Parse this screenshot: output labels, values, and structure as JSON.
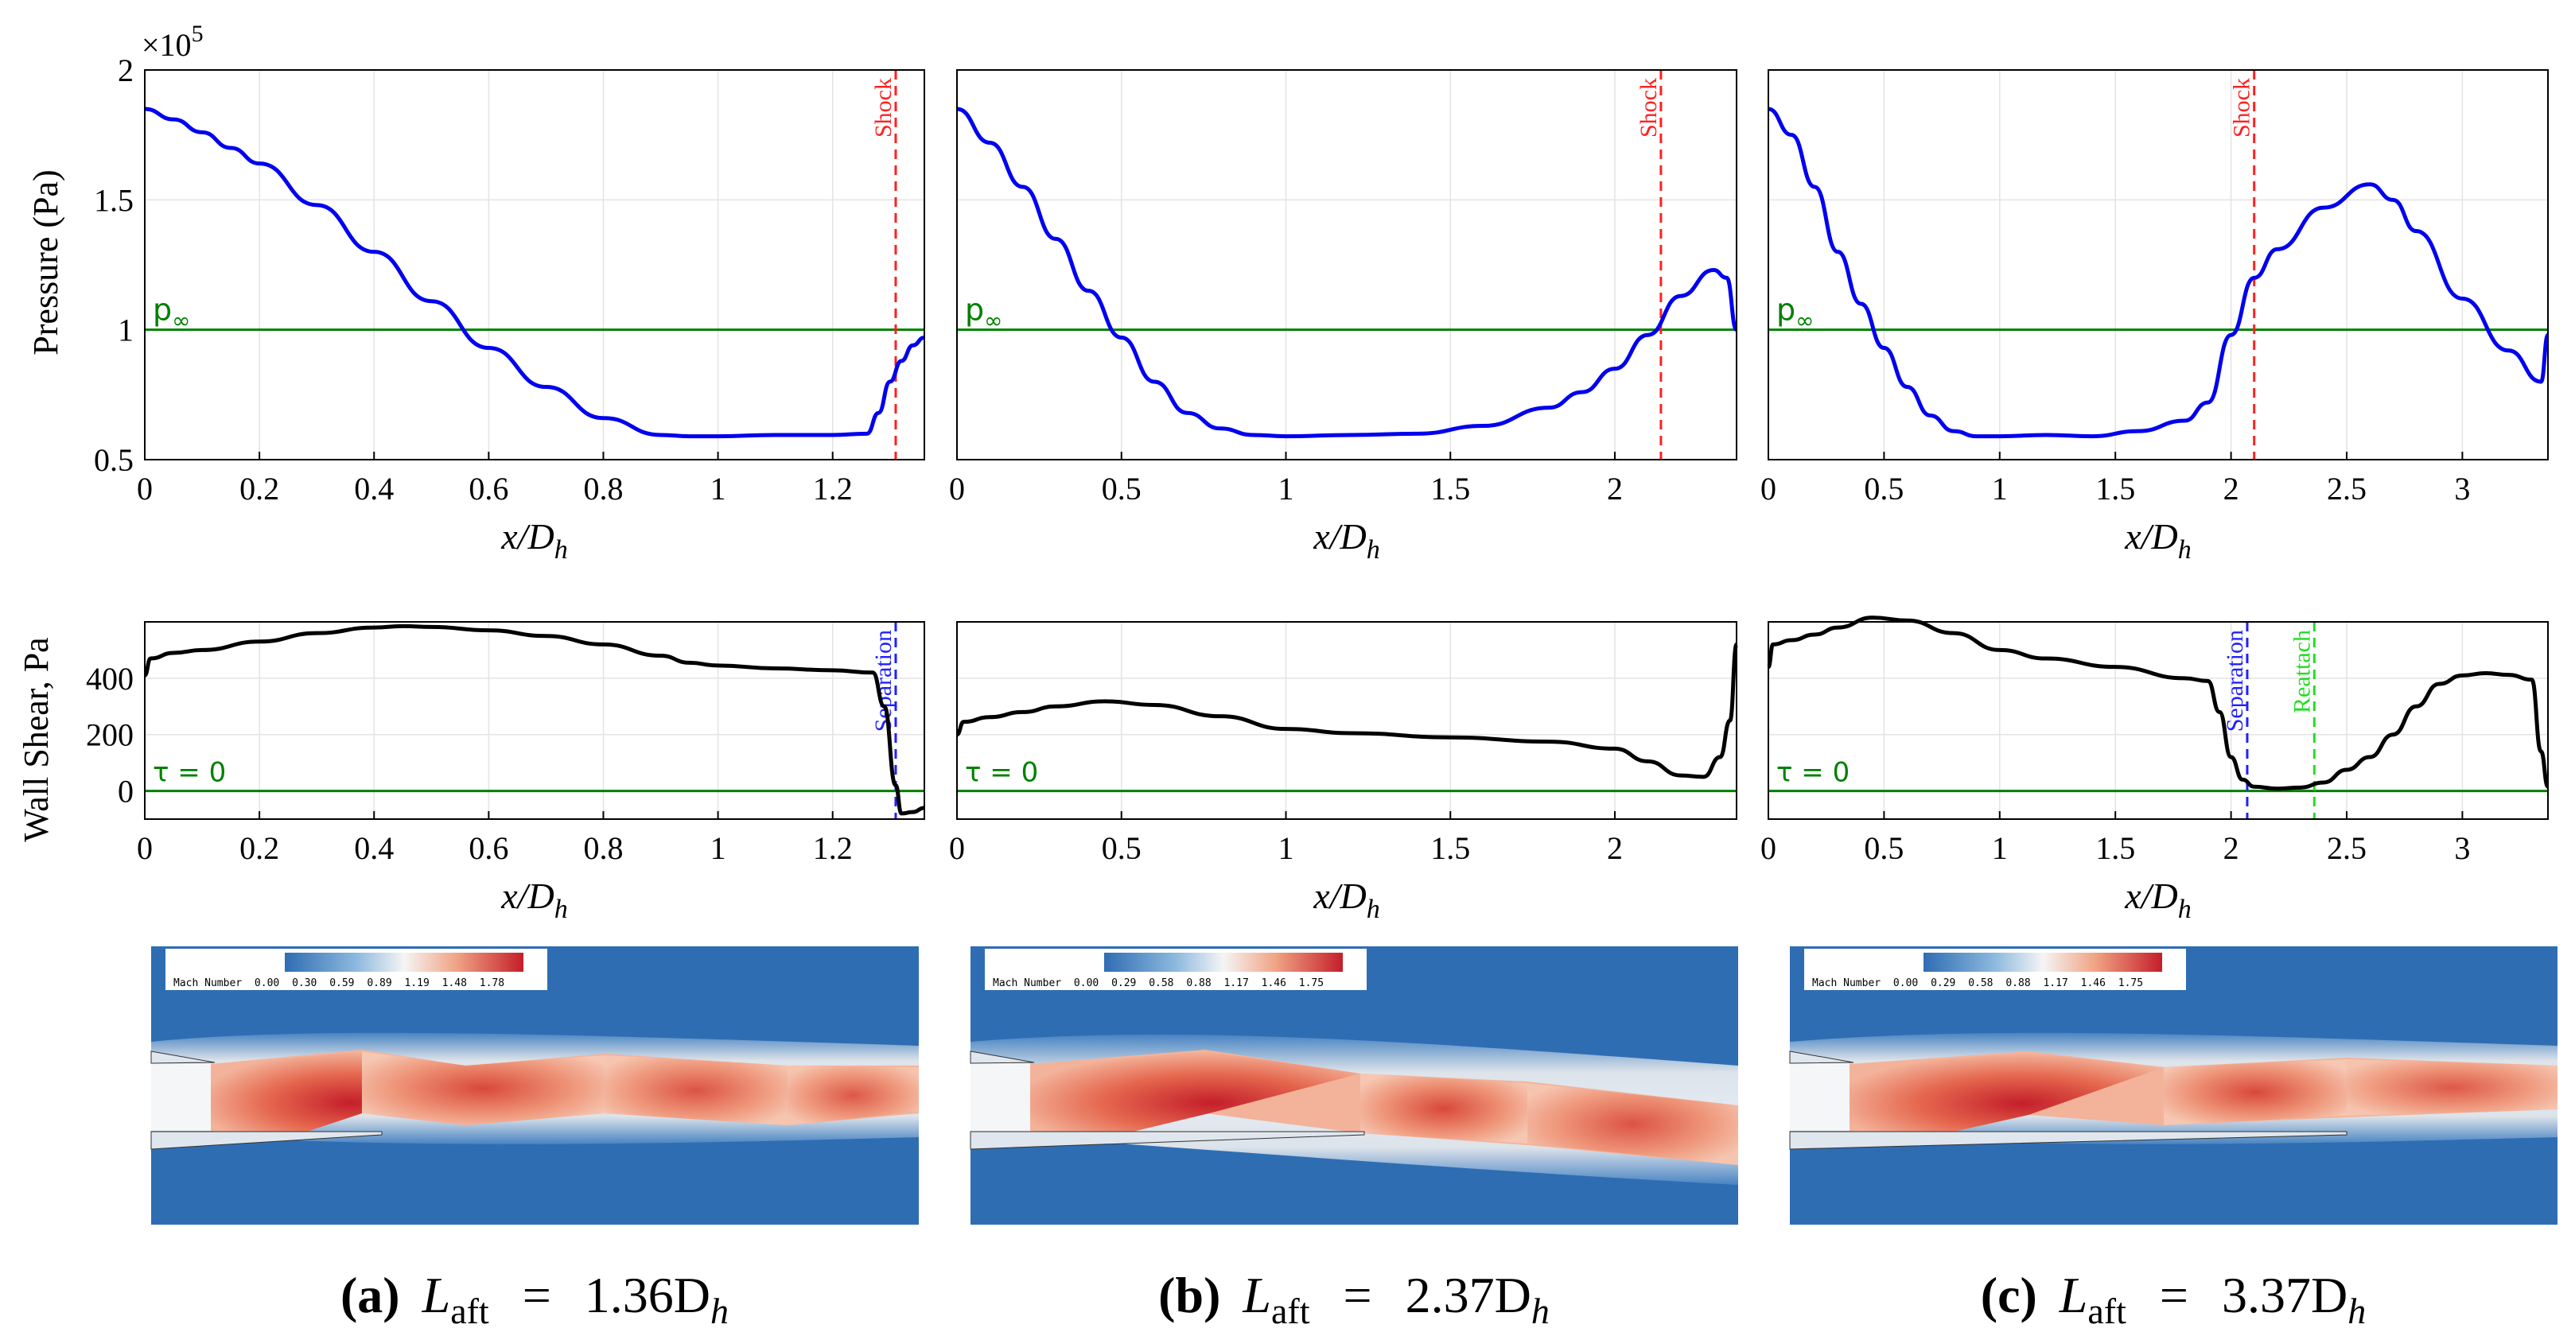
{
  "figure": {
    "pressure_ylabel": "Pressure (Pa)",
    "pressure_scale": "×10",
    "pressure_scale_exp": "5",
    "shear_ylabel": "Wall Shear, Pa",
    "xlabel": "x/D",
    "xlabel_sub": "h",
    "pinf_label": "p",
    "pinf_sub": "∞",
    "tau_label": "τ = 0",
    "shock_label": "Shock",
    "separation_label": "Separation",
    "reattach_label": "Reattach",
    "colorbar_title": "Mach Number"
  },
  "colors": {
    "pressure_line": "#0000ee",
    "shear_line": "#000000",
    "reference_line": "#008000",
    "shock_line": "#ff2020",
    "separation_line": "#2020ff",
    "reattach_line": "#22dd22",
    "contour_bg": "#2f6db3",
    "contour_hot": "#c41e2a"
  },
  "captions": [
    {
      "letter": "(a)",
      "var": "L",
      "sub": "aft",
      "eq": "=",
      "value": "1.36D",
      "value_sub": "h"
    },
    {
      "letter": "(b)",
      "var": "L",
      "sub": "aft",
      "eq": "=",
      "value": "2.37D",
      "value_sub": "h"
    },
    {
      "letter": "(c)",
      "var": "L",
      "sub": "aft",
      "eq": "=",
      "value": "3.37D",
      "value_sub": "h"
    }
  ],
  "colorbars": [
    {
      "ticks": [
        "0.00",
        "0.30",
        "0.59",
        "0.89",
        "1.19",
        "1.48",
        "1.78"
      ]
    },
    {
      "ticks": [
        "0.00",
        "0.29",
        "0.58",
        "0.88",
        "1.17",
        "1.46",
        "1.75"
      ]
    },
    {
      "ticks": [
        "0.00",
        "0.29",
        "0.58",
        "0.88",
        "1.17",
        "1.46",
        "1.75"
      ]
    }
  ],
  "chart_data": [
    {
      "type": "line",
      "id": "pressure-a",
      "ylabel": "Pressure (Pa)",
      "xlabel": "x/D_h",
      "xlim": [
        0,
        1.36
      ],
      "ylim": [
        0.5,
        2.0
      ],
      "yscale_note": "×10^5",
      "xticks": [
        0,
        0.2,
        0.4,
        0.6,
        0.8,
        1,
        1.2
      ],
      "xtick_labels": [
        "0",
        "0.2",
        "0.4",
        "0.6",
        "0.8",
        "1",
        "1.2"
      ],
      "yticks": [
        0.5,
        1,
        1.5,
        2
      ],
      "ytick_labels": [
        "0.5",
        "1",
        "1.5",
        "2"
      ],
      "reference": {
        "y": 1.0,
        "label": "p∞"
      },
      "markers": [
        {
          "x": 1.31,
          "label": "Shock",
          "kind": "shock"
        }
      ],
      "series": [
        {
          "name": "pressure",
          "x": [
            0,
            0.05,
            0.1,
            0.15,
            0.2,
            0.3,
            0.4,
            0.5,
            0.6,
            0.7,
            0.8,
            0.9,
            0.95,
            1.0,
            1.1,
            1.2,
            1.26,
            1.28,
            1.3,
            1.32,
            1.34,
            1.36
          ],
          "y": [
            1.85,
            1.81,
            1.76,
            1.7,
            1.64,
            1.48,
            1.3,
            1.11,
            0.93,
            0.78,
            0.66,
            0.595,
            0.59,
            0.59,
            0.595,
            0.595,
            0.6,
            0.68,
            0.8,
            0.88,
            0.94,
            0.97
          ]
        }
      ]
    },
    {
      "type": "line",
      "id": "pressure-b",
      "xlabel": "x/D_h",
      "xlim": [
        0,
        2.37
      ],
      "ylim": [
        0.5,
        2.0
      ],
      "xticks": [
        0,
        0.5,
        1,
        1.5,
        2
      ],
      "xtick_labels": [
        "0",
        "0.5",
        "1",
        "1.5",
        "2"
      ],
      "yticks": [
        0.5,
        1,
        1.5,
        2
      ],
      "reference": {
        "y": 1.0,
        "label": "p∞"
      },
      "markers": [
        {
          "x": 2.14,
          "label": "Shock",
          "kind": "shock"
        }
      ],
      "series": [
        {
          "name": "pressure",
          "x": [
            0,
            0.1,
            0.2,
            0.3,
            0.4,
            0.5,
            0.6,
            0.7,
            0.8,
            0.9,
            1.0,
            1.2,
            1.4,
            1.6,
            1.8,
            1.9,
            2.0,
            2.1,
            2.2,
            2.3,
            2.34,
            2.37
          ],
          "y": [
            1.85,
            1.72,
            1.55,
            1.35,
            1.15,
            0.97,
            0.8,
            0.68,
            0.62,
            0.595,
            0.59,
            0.595,
            0.6,
            0.63,
            0.7,
            0.76,
            0.85,
            0.98,
            1.13,
            1.23,
            1.2,
            1.0
          ]
        }
      ]
    },
    {
      "type": "line",
      "id": "pressure-c",
      "xlabel": "x/D_h",
      "xlim": [
        0,
        3.37
      ],
      "ylim": [
        0.5,
        2.0
      ],
      "xticks": [
        0,
        0.5,
        1,
        1.5,
        2,
        2.5,
        3
      ],
      "xtick_labels": [
        "0",
        "0.5",
        "1",
        "1.5",
        "2",
        "2.5",
        "3"
      ],
      "yticks": [
        0.5,
        1,
        1.5,
        2
      ],
      "reference": {
        "y": 1.0,
        "label": "p∞"
      },
      "markers": [
        {
          "x": 2.1,
          "label": "Shock",
          "kind": "shock"
        }
      ],
      "series": [
        {
          "name": "pressure",
          "x": [
            0,
            0.1,
            0.2,
            0.3,
            0.4,
            0.5,
            0.6,
            0.7,
            0.8,
            0.9,
            1.0,
            1.2,
            1.4,
            1.6,
            1.8,
            1.9,
            2.0,
            2.1,
            2.2,
            2.4,
            2.6,
            2.7,
            2.8,
            3.0,
            3.2,
            3.34,
            3.37
          ],
          "y": [
            1.85,
            1.75,
            1.55,
            1.3,
            1.1,
            0.93,
            0.78,
            0.67,
            0.61,
            0.59,
            0.59,
            0.595,
            0.59,
            0.61,
            0.65,
            0.72,
            0.98,
            1.2,
            1.31,
            1.47,
            1.56,
            1.5,
            1.38,
            1.12,
            0.92,
            0.8,
            0.98
          ]
        }
      ]
    },
    {
      "type": "line",
      "id": "shear-a",
      "ylabel": "Wall Shear, Pa",
      "xlabel": "x/D_h",
      "xlim": [
        0,
        1.36
      ],
      "ylim": [
        -100,
        600
      ],
      "xticks": [
        0,
        0.2,
        0.4,
        0.6,
        0.8,
        1,
        1.2
      ],
      "xtick_labels": [
        "0",
        "0.2",
        "0.4",
        "0.6",
        "0.8",
        "1",
        "1.2"
      ],
      "yticks": [
        0,
        200,
        400
      ],
      "ytick_labels": [
        "0",
        "200",
        "400"
      ],
      "reference": {
        "y": 0,
        "label": "τ = 0"
      },
      "markers": [
        {
          "x": 1.31,
          "label": "Separation",
          "kind": "separation"
        }
      ],
      "series": [
        {
          "name": "wall shear",
          "x": [
            0,
            0.01,
            0.05,
            0.1,
            0.2,
            0.3,
            0.4,
            0.45,
            0.5,
            0.6,
            0.7,
            0.8,
            0.9,
            0.95,
            1.0,
            1.1,
            1.2,
            1.27,
            1.29,
            1.31,
            1.32,
            1.34,
            1.36
          ],
          "y": [
            410,
            470,
            490,
            500,
            530,
            560,
            580,
            585,
            582,
            570,
            550,
            520,
            480,
            455,
            445,
            435,
            428,
            420,
            300,
            20,
            -80,
            -75,
            -60
          ]
        }
      ]
    },
    {
      "type": "line",
      "id": "shear-b",
      "xlabel": "x/D_h",
      "xlim": [
        0,
        2.37
      ],
      "ylim": [
        -100,
        600
      ],
      "xticks": [
        0,
        0.5,
        1,
        1.5,
        2
      ],
      "xtick_labels": [
        "0",
        "0.5",
        "1",
        "1.5",
        "2"
      ],
      "yticks": [
        0,
        200,
        400
      ],
      "reference": {
        "y": 0,
        "label": "τ = 0"
      },
      "markers": [],
      "series": [
        {
          "name": "wall shear",
          "x": [
            0,
            0.02,
            0.1,
            0.2,
            0.3,
            0.45,
            0.6,
            0.8,
            1.0,
            1.2,
            1.5,
            1.8,
            2.0,
            2.1,
            2.2,
            2.27,
            2.32,
            2.35,
            2.37
          ],
          "y": [
            200,
            245,
            262,
            280,
            300,
            318,
            305,
            265,
            220,
            205,
            190,
            175,
            150,
            105,
            55,
            50,
            120,
            250,
            520
          ]
        }
      ]
    },
    {
      "type": "line",
      "id": "shear-c",
      "xlabel": "x/D_h",
      "xlim": [
        0,
        3.37
      ],
      "ylim": [
        -100,
        600
      ],
      "xticks": [
        0,
        0.5,
        1,
        1.5,
        2,
        2.5,
        3
      ],
      "xtick_labels": [
        "0",
        "0.5",
        "1",
        "1.5",
        "2",
        "2.5",
        "3"
      ],
      "yticks": [
        0,
        200,
        400
      ],
      "reference": {
        "y": 0,
        "label": "τ = 0"
      },
      "markers": [
        {
          "x": 2.07,
          "label": "Separation",
          "kind": "separation"
        },
        {
          "x": 2.36,
          "label": "Reattach",
          "kind": "reattach"
        }
      ],
      "series": [
        {
          "name": "wall shear",
          "x": [
            0,
            0.02,
            0.1,
            0.2,
            0.3,
            0.45,
            0.6,
            0.8,
            1.0,
            1.2,
            1.5,
            1.8,
            1.9,
            1.95,
            2.0,
            2.05,
            2.1,
            2.2,
            2.3,
            2.4,
            2.5,
            2.6,
            2.7,
            2.8,
            2.9,
            3.0,
            3.1,
            3.2,
            3.3,
            3.34,
            3.37
          ],
          "y": [
            440,
            520,
            535,
            555,
            580,
            615,
            605,
            560,
            500,
            470,
            440,
            400,
            390,
            280,
            120,
            40,
            15,
            8,
            12,
            30,
            75,
            120,
            200,
            300,
            380,
            410,
            418,
            412,
            395,
            140,
            15
          ]
        }
      ]
    }
  ]
}
